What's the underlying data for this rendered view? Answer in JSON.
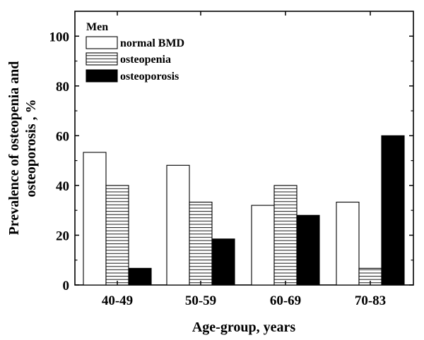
{
  "chart_data": {
    "type": "bar",
    "title": "",
    "xlabel": "Age-group, years",
    "ylabel_lines": [
      "Prevalence of osteopenia and",
      "osteoporosis , %"
    ],
    "categories": [
      "40-49",
      "50-59",
      "60-69",
      "70-83"
    ],
    "ylim": [
      0,
      110
    ],
    "yticks": [
      0,
      20,
      40,
      60,
      80,
      100
    ],
    "legend": {
      "title": "Men",
      "placement": "top-left"
    },
    "series": [
      {
        "name": "normal BMD",
        "values": [
          53.3,
          48.1,
          32.0,
          33.3
        ],
        "fill": "#ffffff",
        "pattern": "none"
      },
      {
        "name": "osteopenia",
        "values": [
          40.0,
          33.3,
          40.0,
          6.7
        ],
        "fill": "#ffffff",
        "pattern": "horizontal-lines"
      },
      {
        "name": "osteoporosis",
        "values": [
          6.7,
          18.5,
          28.0,
          60.0
        ],
        "fill": "#000000",
        "pattern": "none"
      }
    ],
    "grid": false,
    "colors": {
      "axis": "#000000",
      "background": "#ffffff"
    }
  }
}
